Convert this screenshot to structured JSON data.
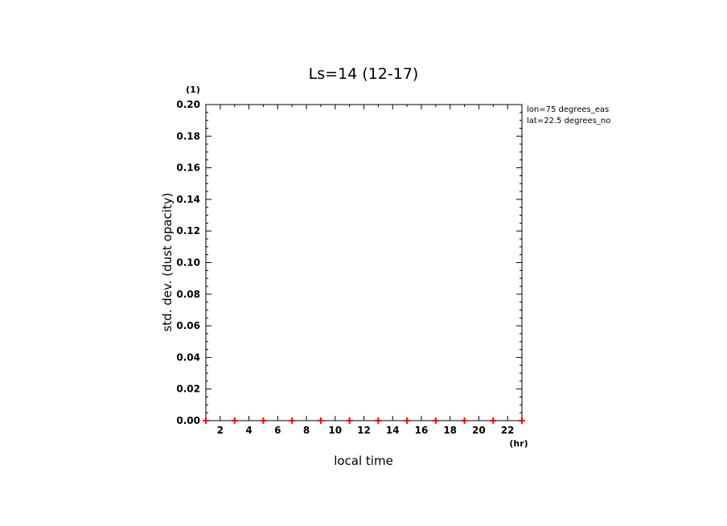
{
  "chart_data": {
    "type": "scatter",
    "title": "Ls=14 (12-17)",
    "xlabel": "local time",
    "ylabel": "std. dev. (dust opacity)",
    "x_unit": "(hr)",
    "y_unit": "(1)",
    "xlim": [
      1,
      23
    ],
    "ylim": [
      0,
      0.2
    ],
    "x_ticks": [
      2,
      4,
      6,
      8,
      10,
      12,
      14,
      16,
      18,
      20,
      22
    ],
    "y_ticks": [
      0.0,
      0.02,
      0.04,
      0.06,
      0.08,
      0.1,
      0.12,
      0.14,
      0.16,
      0.18,
      0.2
    ],
    "y_tick_labels": [
      "0.00",
      "0.02",
      "0.04",
      "0.06",
      "0.08",
      "0.10",
      "0.12",
      "0.14",
      "0.16",
      "0.18",
      "0.20"
    ],
    "series": [
      {
        "marker": "+",
        "color": "#ff0000",
        "x": [
          1,
          3,
          5,
          7,
          9,
          11,
          13,
          15,
          17,
          19,
          21,
          23
        ],
        "y": [
          0,
          0,
          0,
          0,
          0,
          0,
          0,
          0,
          0,
          0,
          0,
          0
        ]
      }
    ],
    "annotations": [
      "lon=75 degrees_eas",
      "lat=22.5 degrees_no"
    ],
    "grid": false
  }
}
